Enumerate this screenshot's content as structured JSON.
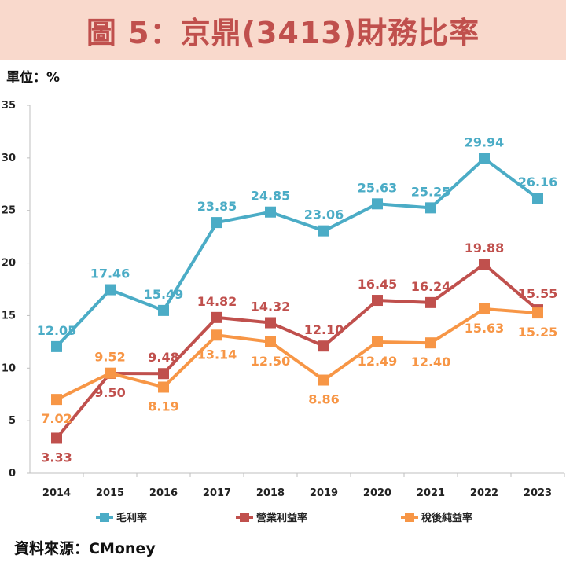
{
  "title": "圖 5：京鼎(3413)財務比率",
  "unit_label": "單位：%",
  "source": "資料來源：CMoney",
  "colors": {
    "title_bg": "#f9d9cc",
    "title_text": "#c0504d",
    "gross": "#4bacc6",
    "operating": "#c0504d",
    "net": "#f79646"
  },
  "chart_data": {
    "type": "line",
    "categories": [
      "2014",
      "2015",
      "2016",
      "2017",
      "2018",
      "2019",
      "2020",
      "2021",
      "2022",
      "2023"
    ],
    "ylim": [
      0,
      35
    ],
    "yticks": [
      "0",
      "5",
      "10",
      "15",
      "20",
      "25",
      "30",
      "35"
    ],
    "grid": false,
    "legend_position": "bottom",
    "series": [
      {
        "name": "毛利率",
        "color": "#4bacc6",
        "values": [
          12.05,
          17.46,
          15.49,
          23.85,
          24.85,
          23.06,
          25.63,
          25.25,
          29.94,
          26.16
        ],
        "labels": [
          "12.05",
          "17.46",
          "15.49",
          "23.85",
          "24.85",
          "23.06",
          "25.63",
          "25.25",
          "29.94",
          "26.16"
        ]
      },
      {
        "name": "營業利益率",
        "color": "#c0504d",
        "values": [
          3.33,
          9.5,
          9.48,
          14.82,
          14.32,
          12.1,
          16.45,
          16.24,
          19.88,
          15.55
        ],
        "labels": [
          "3.33",
          "9.50",
          "9.48",
          "14.82",
          "14.32",
          "12.10",
          "16.45",
          "16.24",
          "19.88",
          "15.55"
        ]
      },
      {
        "name": "稅後純益率",
        "color": "#f79646",
        "values": [
          7.02,
          9.52,
          8.19,
          13.14,
          12.5,
          8.86,
          12.49,
          12.4,
          15.63,
          15.25
        ],
        "labels": [
          "7.02",
          "9.52",
          "8.19",
          "13.14",
          "12.50",
          "8.86",
          "12.49",
          "12.40",
          "15.63",
          "15.25"
        ]
      }
    ]
  }
}
